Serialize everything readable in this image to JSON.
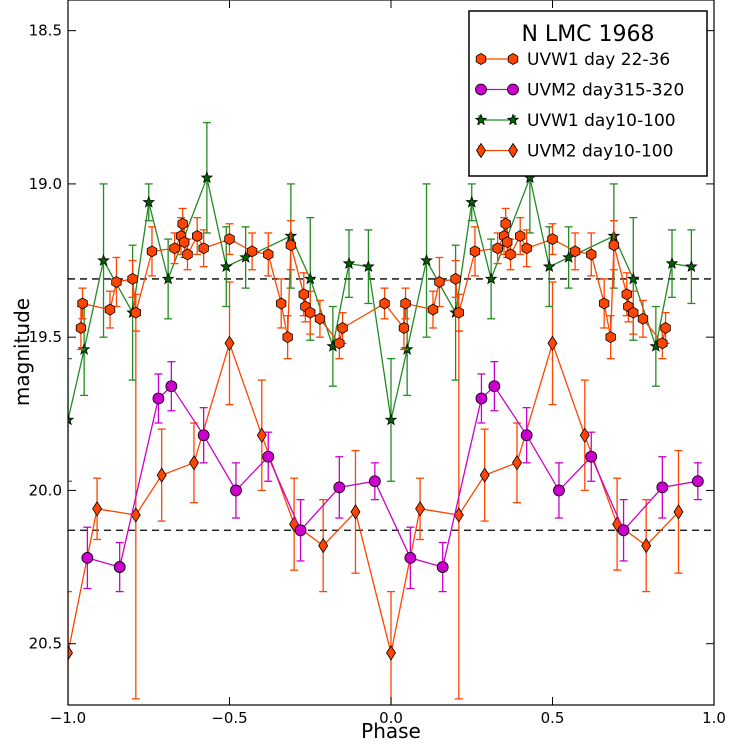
{
  "chart_data": {
    "type": "scatter",
    "title": "",
    "xlabel": "Phase",
    "ylabel": "magnitude",
    "xlim": [
      -1.0,
      1.0
    ],
    "ylim": [
      20.7,
      18.4
    ],
    "y_inverted": true,
    "xticks": [
      "−1.0",
      "−0.5",
      "0.0",
      "0.5",
      "1.0"
    ],
    "xtick_values": [
      -1.0,
      -0.5,
      0.0,
      0.5,
      1.0
    ],
    "yticks": [
      "18.5",
      "19.0",
      "19.5",
      "20.0",
      "20.5"
    ],
    "ytick_values": [
      18.5,
      19.0,
      19.5,
      20.0,
      20.5
    ],
    "grid": false,
    "legend": {
      "title": "N LMC 1968",
      "placement": "top-right"
    },
    "reference_lines": [
      19.31,
      20.13
    ],
    "series": [
      {
        "name": "UVW1 day 22-36",
        "marker": "hexagon",
        "color": "#ff4500",
        "line_color": "#ff4500",
        "connect": true,
        "points": [
          {
            "x": -0.96,
            "y": 19.47,
            "err": 0.07
          },
          {
            "x": -0.955,
            "y": 19.39,
            "err": 0.05
          },
          {
            "x": -0.87,
            "y": 19.41,
            "err": 0.06
          },
          {
            "x": -0.85,
            "y": 19.32,
            "err": 0.08
          },
          {
            "x": -0.8,
            "y": 19.31,
            "err": 0.06
          },
          {
            "x": -0.79,
            "y": 19.42,
            "err": 0.06
          },
          {
            "x": -0.74,
            "y": 19.22,
            "err": 0.08
          },
          {
            "x": -0.67,
            "y": 19.21,
            "err": 0.05
          },
          {
            "x": -0.65,
            "y": 19.17,
            "err": 0.06
          },
          {
            "x": -0.645,
            "y": 19.13,
            "err": 0.05
          },
          {
            "x": -0.64,
            "y": 19.19,
            "err": 0.05
          },
          {
            "x": -0.63,
            "y": 19.23,
            "err": 0.05
          },
          {
            "x": -0.6,
            "y": 19.17,
            "err": 0.06
          },
          {
            "x": -0.58,
            "y": 19.21,
            "err": 0.06
          },
          {
            "x": -0.5,
            "y": 19.18,
            "err": 0.05
          },
          {
            "x": -0.43,
            "y": 19.22,
            "err": 0.06
          },
          {
            "x": -0.38,
            "y": 19.23,
            "err": 0.07
          },
          {
            "x": -0.34,
            "y": 19.39,
            "err": 0.08
          },
          {
            "x": -0.32,
            "y": 19.5,
            "err": 0.07
          },
          {
            "x": -0.31,
            "y": 19.2,
            "err": 0.08
          },
          {
            "x": -0.27,
            "y": 19.36,
            "err": 0.07
          },
          {
            "x": -0.265,
            "y": 19.4,
            "err": 0.05
          },
          {
            "x": -0.25,
            "y": 19.42,
            "err": 0.07
          },
          {
            "x": -0.22,
            "y": 19.44,
            "err": 0.06
          },
          {
            "x": -0.16,
            "y": 19.52,
            "err": 0.05
          },
          {
            "x": -0.15,
            "y": 19.47,
            "err": 0.05
          },
          {
            "x": -0.02,
            "y": 19.39,
            "err": 0.05
          },
          {
            "x": 0.04,
            "y": 19.47,
            "err": 0.07
          },
          {
            "x": 0.045,
            "y": 19.39,
            "err": 0.05
          },
          {
            "x": 0.13,
            "y": 19.41,
            "err": 0.06
          },
          {
            "x": 0.15,
            "y": 19.32,
            "err": 0.08
          },
          {
            "x": 0.2,
            "y": 19.31,
            "err": 0.06
          },
          {
            "x": 0.21,
            "y": 19.42,
            "err": 0.06
          },
          {
            "x": 0.26,
            "y": 19.22,
            "err": 0.08
          },
          {
            "x": 0.33,
            "y": 19.21,
            "err": 0.05
          },
          {
            "x": 0.35,
            "y": 19.17,
            "err": 0.06
          },
          {
            "x": 0.355,
            "y": 19.13,
            "err": 0.05
          },
          {
            "x": 0.36,
            "y": 19.19,
            "err": 0.05
          },
          {
            "x": 0.37,
            "y": 19.23,
            "err": 0.05
          },
          {
            "x": 0.4,
            "y": 19.17,
            "err": 0.06
          },
          {
            "x": 0.42,
            "y": 19.21,
            "err": 0.06
          },
          {
            "x": 0.5,
            "y": 19.18,
            "err": 0.05
          },
          {
            "x": 0.57,
            "y": 19.22,
            "err": 0.06
          },
          {
            "x": 0.62,
            "y": 19.23,
            "err": 0.07
          },
          {
            "x": 0.66,
            "y": 19.39,
            "err": 0.08
          },
          {
            "x": 0.68,
            "y": 19.5,
            "err": 0.07
          },
          {
            "x": 0.69,
            "y": 19.2,
            "err": 0.08
          },
          {
            "x": 0.73,
            "y": 19.36,
            "err": 0.07
          },
          {
            "x": 0.735,
            "y": 19.4,
            "err": 0.05
          },
          {
            "x": 0.75,
            "y": 19.42,
            "err": 0.07
          },
          {
            "x": 0.78,
            "y": 19.44,
            "err": 0.06
          },
          {
            "x": 0.84,
            "y": 19.52,
            "err": 0.05
          },
          {
            "x": 0.85,
            "y": 19.47,
            "err": 0.05
          }
        ]
      },
      {
        "name": "UVM2 day315-320",
        "marker": "circle",
        "color": "#cc00cc",
        "line_color": "#cc00cc",
        "connect": true,
        "points": [
          {
            "x": -0.94,
            "y": 20.22,
            "err": 0.1
          },
          {
            "x": -0.84,
            "y": 20.25,
            "err": 0.08
          },
          {
            "x": -0.72,
            "y": 19.7,
            "err": 0.08
          },
          {
            "x": -0.68,
            "y": 19.66,
            "err": 0.08
          },
          {
            "x": -0.58,
            "y": 19.82,
            "err": 0.09
          },
          {
            "x": -0.48,
            "y": 20.0,
            "err": 0.09
          },
          {
            "x": -0.38,
            "y": 19.89,
            "err": 0.08
          },
          {
            "x": -0.28,
            "y": 20.13,
            "err": 0.1
          },
          {
            "x": -0.16,
            "y": 19.99,
            "err": 0.1
          },
          {
            "x": -0.05,
            "y": 19.97,
            "err": 0.06
          },
          {
            "x": 0.06,
            "y": 20.22,
            "err": 0.1
          },
          {
            "x": 0.16,
            "y": 20.25,
            "err": 0.08
          },
          {
            "x": 0.28,
            "y": 19.7,
            "err": 0.08
          },
          {
            "x": 0.32,
            "y": 19.66,
            "err": 0.08
          },
          {
            "x": 0.42,
            "y": 19.82,
            "err": 0.09
          },
          {
            "x": 0.52,
            "y": 20.0,
            "err": 0.09
          },
          {
            "x": 0.62,
            "y": 19.89,
            "err": 0.08
          },
          {
            "x": 0.72,
            "y": 20.13,
            "err": 0.1
          },
          {
            "x": 0.84,
            "y": 19.99,
            "err": 0.1
          },
          {
            "x": 0.95,
            "y": 19.97,
            "err": 0.06
          }
        ]
      },
      {
        "name": "UVW1 day10-100",
        "marker": "star",
        "color": "#006400",
        "line_color": "#228b22",
        "connect": true,
        "points": [
          {
            "x": -1.0,
            "y": 19.77,
            "err": 0.2
          },
          {
            "x": -0.95,
            "y": 19.54,
            "err": 0.15
          },
          {
            "x": -0.89,
            "y": 19.25,
            "err": 0.25
          },
          {
            "x": -0.8,
            "y": 19.42,
            "err": 0.22
          },
          {
            "x": -0.75,
            "y": 19.06,
            "err": 0.06
          },
          {
            "x": -0.69,
            "y": 19.31,
            "err": 0.13
          },
          {
            "x": -0.57,
            "y": 18.98,
            "err": 0.18
          },
          {
            "x": -0.51,
            "y": 19.27,
            "err": 0.13
          },
          {
            "x": -0.45,
            "y": 19.24,
            "err": 0.1
          },
          {
            "x": -0.31,
            "y": 19.17,
            "err": 0.17
          },
          {
            "x": -0.25,
            "y": 19.31,
            "err": 0.2
          },
          {
            "x": -0.18,
            "y": 19.53,
            "err": 0.13
          },
          {
            "x": -0.13,
            "y": 19.26,
            "err": 0.11
          },
          {
            "x": -0.07,
            "y": 19.27,
            "err": 0.12
          },
          {
            "x": 0.0,
            "y": 19.77,
            "err": 0.2
          },
          {
            "x": 0.05,
            "y": 19.54,
            "err": 0.15
          },
          {
            "x": 0.11,
            "y": 19.25,
            "err": 0.25
          },
          {
            "x": 0.2,
            "y": 19.42,
            "err": 0.22
          },
          {
            "x": 0.25,
            "y": 19.06,
            "err": 0.06
          },
          {
            "x": 0.31,
            "y": 19.31,
            "err": 0.13
          },
          {
            "x": 0.43,
            "y": 18.98,
            "err": 0.18
          },
          {
            "x": 0.49,
            "y": 19.27,
            "err": 0.13
          },
          {
            "x": 0.55,
            "y": 19.24,
            "err": 0.1
          },
          {
            "x": 0.69,
            "y": 19.17,
            "err": 0.17
          },
          {
            "x": 0.75,
            "y": 19.31,
            "err": 0.2
          },
          {
            "x": 0.82,
            "y": 19.53,
            "err": 0.13
          },
          {
            "x": 0.87,
            "y": 19.26,
            "err": 0.11
          },
          {
            "x": 0.93,
            "y": 19.27,
            "err": 0.12
          }
        ]
      },
      {
        "name": "UVM2 day10-100",
        "marker": "diamond",
        "color": "#ff4500",
        "line_color": "#ff4500",
        "connect": true,
        "points": [
          {
            "x": -1.0,
            "y": 20.53,
            "err": 0.2
          },
          {
            "x": -0.91,
            "y": 20.06,
            "err": 0.1
          },
          {
            "x": -0.79,
            "y": 20.08,
            "err": 0.6
          },
          {
            "x": -0.71,
            "y": 19.95,
            "err": 0.15
          },
          {
            "x": -0.61,
            "y": 19.91,
            "err": 0.13
          },
          {
            "x": -0.5,
            "y": 19.52,
            "err": 0.2
          },
          {
            "x": -0.4,
            "y": 19.82,
            "err": 0.18
          },
          {
            "x": -0.3,
            "y": 20.11,
            "err": 0.15
          },
          {
            "x": -0.21,
            "y": 20.18,
            "err": 0.15
          },
          {
            "x": -0.11,
            "y": 20.07,
            "err": 0.2
          },
          {
            "x": 0.0,
            "y": 20.53,
            "err": 0.2
          },
          {
            "x": 0.09,
            "y": 20.06,
            "err": 0.1
          },
          {
            "x": 0.21,
            "y": 20.08,
            "err": 0.6
          },
          {
            "x": 0.29,
            "y": 19.95,
            "err": 0.15
          },
          {
            "x": 0.39,
            "y": 19.91,
            "err": 0.13
          },
          {
            "x": 0.5,
            "y": 19.52,
            "err": 0.2
          },
          {
            "x": 0.6,
            "y": 19.82,
            "err": 0.18
          },
          {
            "x": 0.7,
            "y": 20.11,
            "err": 0.15
          },
          {
            "x": 0.79,
            "y": 20.18,
            "err": 0.15
          },
          {
            "x": 0.89,
            "y": 20.07,
            "err": 0.2
          }
        ]
      }
    ]
  }
}
